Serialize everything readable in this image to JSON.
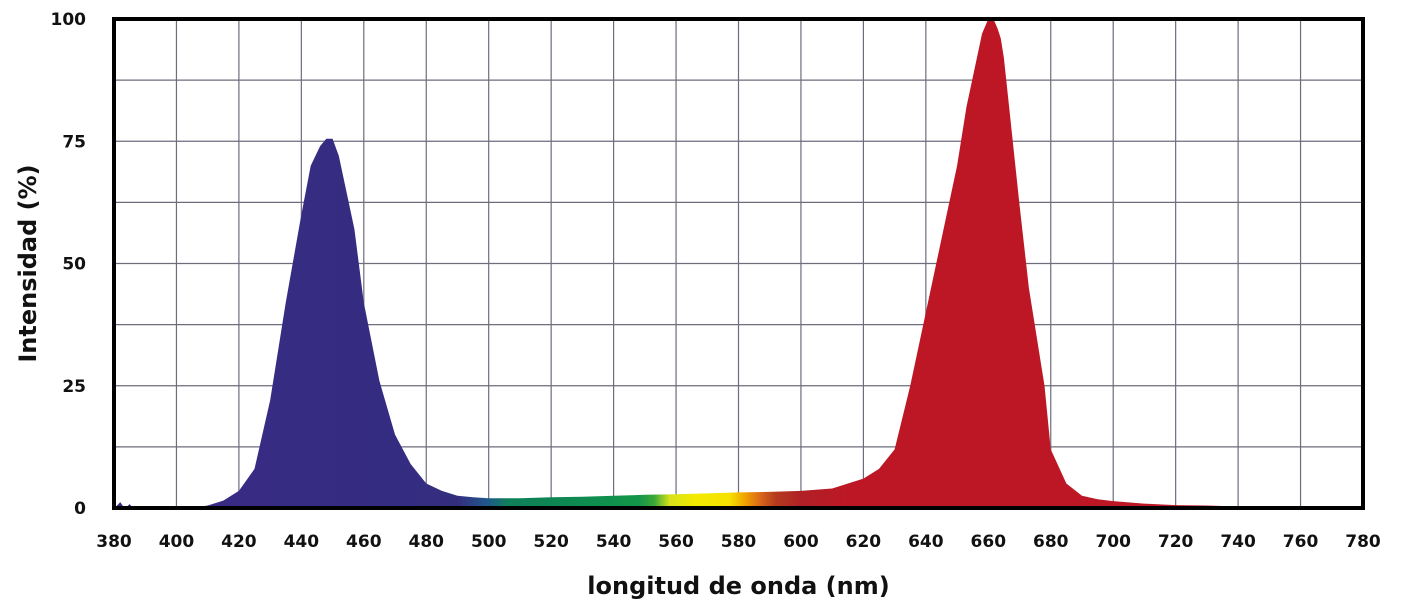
{
  "chart_data": {
    "type": "area",
    "title": "",
    "xlabel": "longitud de onda (nm)",
    "ylabel": "Intensidad (%)",
    "xlim": [
      380,
      780
    ],
    "ylim": [
      0,
      100
    ],
    "x_ticks": [
      380,
      400,
      420,
      440,
      460,
      480,
      500,
      520,
      540,
      560,
      580,
      600,
      620,
      640,
      660,
      680,
      700,
      720,
      740,
      760,
      780
    ],
    "x_tick_labels": [
      "380",
      "400",
      "420",
      "440",
      "460",
      "480",
      "500",
      "520",
      "540",
      "560",
      "580",
      "600",
      "620",
      "640",
      "660",
      "680",
      "700",
      "720",
      "740",
      "760",
      "780"
    ],
    "y_ticks": [
      0,
      25,
      50,
      75,
      100
    ],
    "y_tick_labels": [
      "0",
      "25",
      "50",
      "75",
      "100"
    ],
    "grid": true,
    "fill": "spectral",
    "series": [
      {
        "x": [
          380,
          381,
          382,
          383,
          384,
          385,
          386,
          387,
          388,
          390,
          395,
          400,
          405,
          410,
          415,
          420,
          425,
          430,
          435,
          440,
          443,
          446,
          448,
          450,
          452,
          455,
          457,
          460,
          465,
          470,
          475,
          480,
          485,
          490,
          495,
          500,
          510,
          520,
          530,
          540,
          550,
          560,
          570,
          580,
          590,
          600,
          610,
          620,
          625,
          630,
          635,
          640,
          645,
          650,
          653,
          656,
          658,
          660,
          661,
          662,
          663,
          664,
          665,
          667,
          670,
          673,
          675,
          678,
          680,
          685,
          690,
          695,
          700,
          710,
          720,
          730,
          735,
          738,
          740,
          760,
          780
        ],
        "y": [
          0,
          0.5,
          1.2,
          0.3,
          0.2,
          0.8,
          0.1,
          0.1,
          0,
          0,
          0,
          0,
          0,
          0.5,
          1.5,
          3.5,
          8,
          22,
          42,
          60,
          70,
          74,
          75.5,
          75.5,
          72,
          63,
          57,
          42,
          26,
          15,
          9,
          5,
          3.5,
          2.5,
          2.2,
          2,
          2,
          2.2,
          2.3,
          2.5,
          2.7,
          2.8,
          3,
          3.2,
          3.3,
          3.5,
          4,
          6,
          8,
          12,
          25,
          40,
          55,
          70,
          82,
          91,
          97,
          100,
          100,
          99.5,
          98,
          96,
          92,
          80,
          62,
          45,
          37,
          25,
          12,
          5,
          2.5,
          1.8,
          1.4,
          0.9,
          0.6,
          0.5,
          0.4,
          0.2,
          0,
          0,
          0
        ]
      }
    ]
  }
}
